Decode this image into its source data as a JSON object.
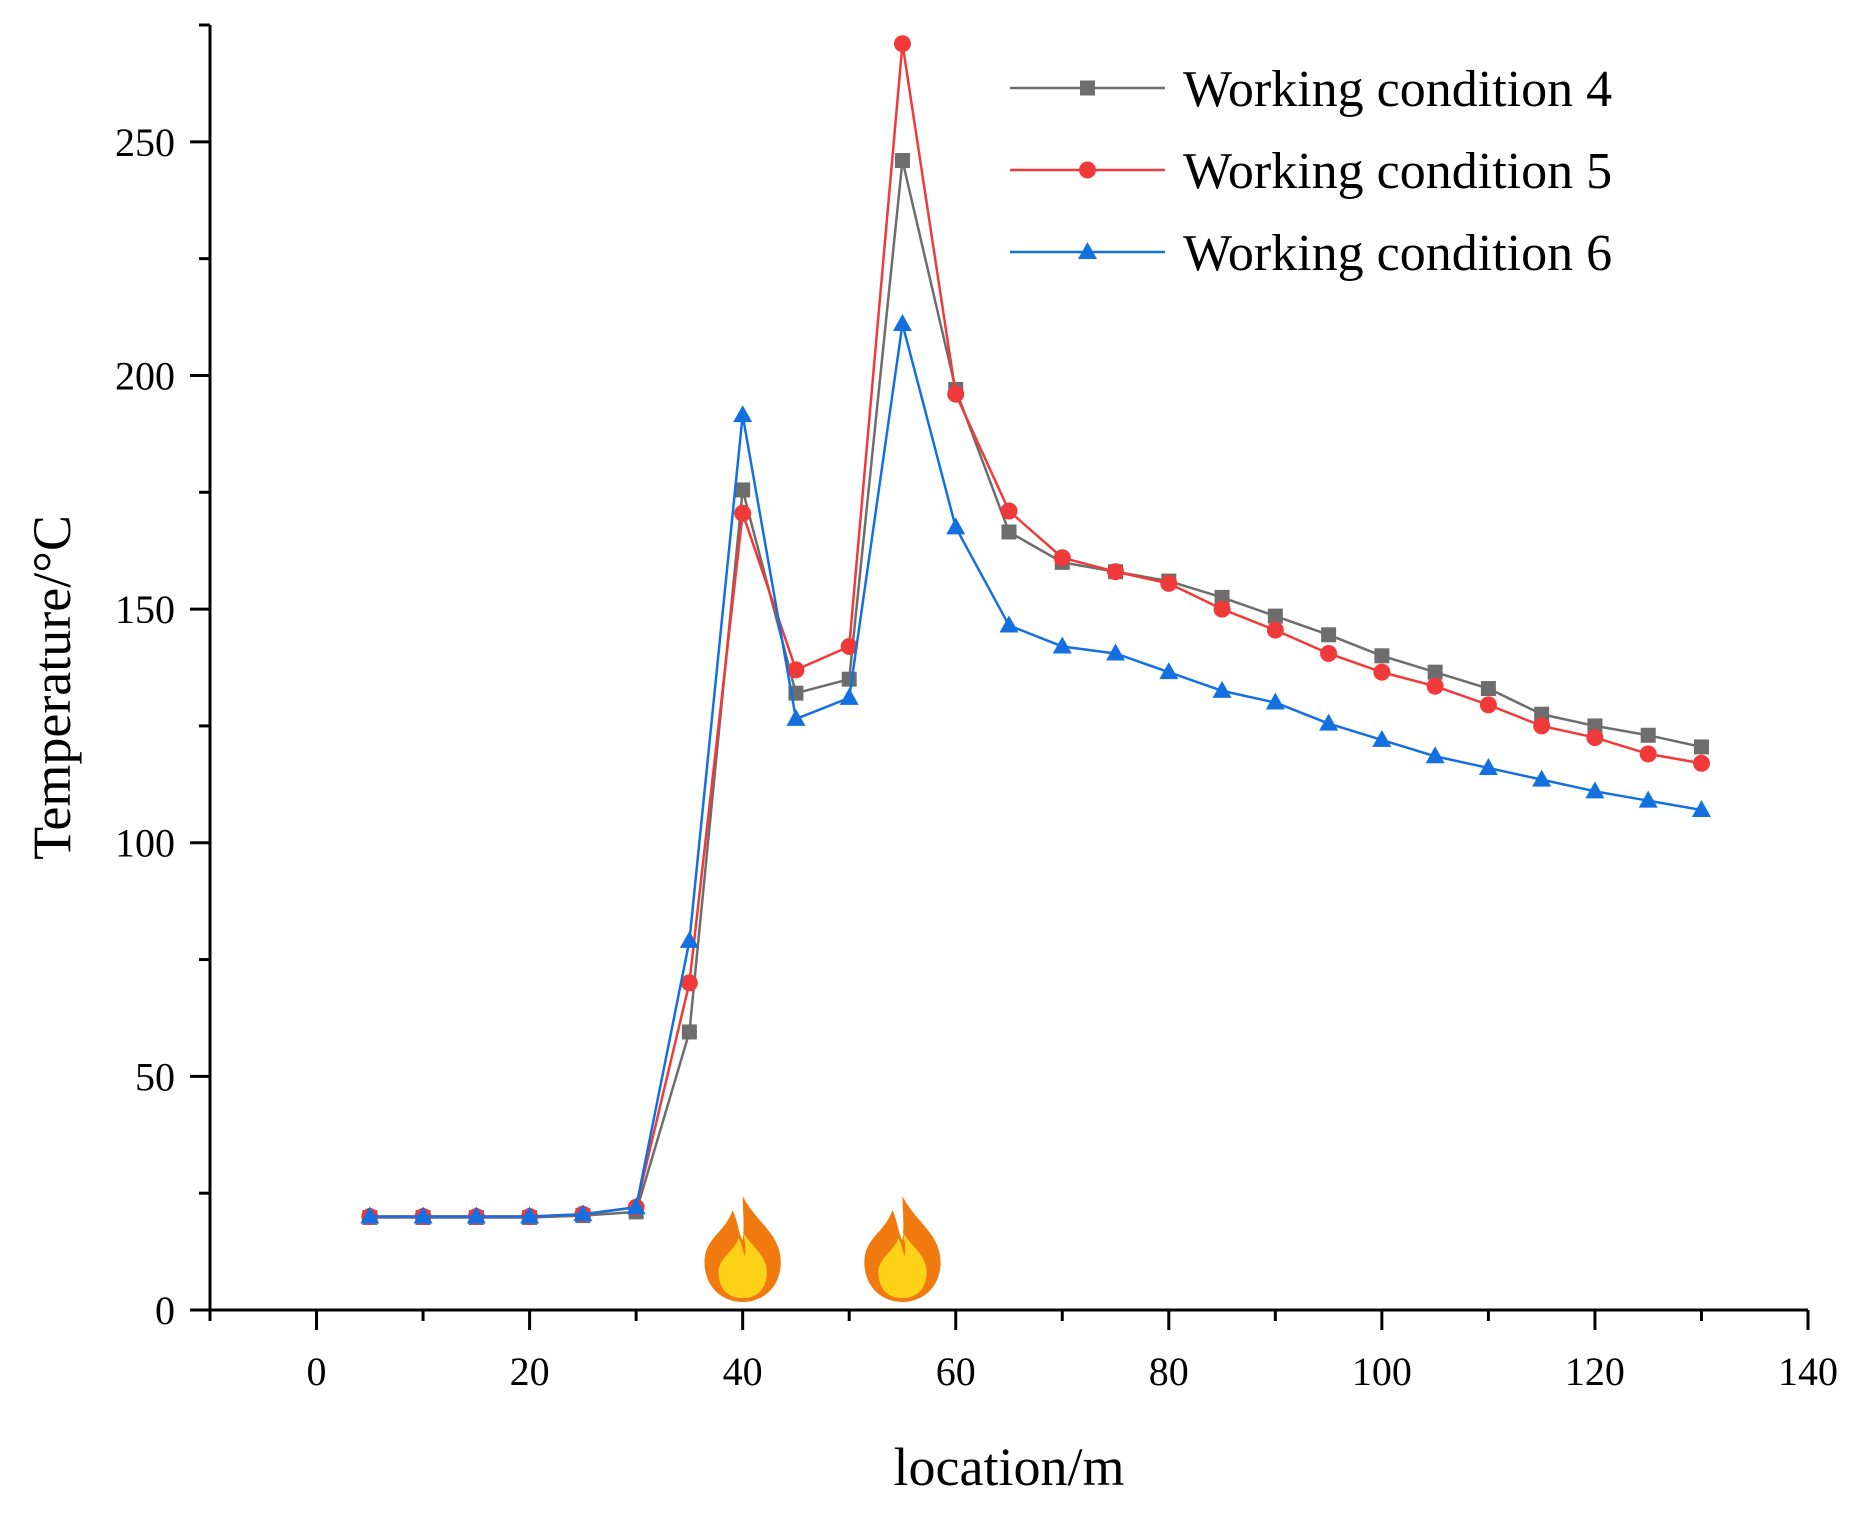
{
  "chart_data": {
    "type": "line",
    "xlabel": "location/m",
    "ylabel": "Temperature/°C",
    "xlim": [
      -10,
      140
    ],
    "ylim": [
      0,
      275
    ],
    "x_ticks": [
      0,
      20,
      40,
      60,
      80,
      100,
      120,
      140
    ],
    "y_ticks": [
      0,
      50,
      100,
      150,
      200,
      250
    ],
    "grid": false,
    "legend_position": "top-right",
    "x": [
      5,
      10,
      15,
      20,
      25,
      30,
      35,
      40,
      45,
      50,
      55,
      60,
      65,
      70,
      75,
      80,
      85,
      90,
      95,
      100,
      105,
      110,
      115,
      120,
      125,
      130
    ],
    "series": [
      {
        "name": "Working condition 4",
        "color": "#6d6d6d",
        "marker": "square",
        "values": [
          19.8,
          19.8,
          19.8,
          19.8,
          20.2,
          21,
          59.5,
          175.5,
          132,
          135,
          246,
          197,
          166.5,
          160,
          158,
          156,
          152.5,
          148.5,
          144.5,
          140,
          136.5,
          133,
          127.5,
          125,
          123,
          120.5
        ]
      },
      {
        "name": "Working condition 5",
        "color": "#f03a3a",
        "marker": "circle",
        "values": [
          20,
          20,
          20,
          20,
          20.5,
          22,
          70,
          170.5,
          137,
          142,
          271,
          196,
          171,
          161,
          158,
          155.5,
          150,
          145.5,
          140.5,
          136.5,
          133.5,
          129.5,
          125,
          122.5,
          119,
          117
        ]
      },
      {
        "name": "Working condition 6",
        "color": "#1470e0",
        "marker": "triangle",
        "values": [
          20,
          20,
          20,
          20,
          20.5,
          22,
          79,
          191.5,
          126.5,
          131,
          211,
          167.5,
          146.5,
          142,
          140.5,
          136.5,
          132.5,
          130,
          125.5,
          122,
          118.5,
          116,
          113.5,
          111,
          109,
          107
        ]
      }
    ],
    "fire_markers": [
      {
        "x": 40,
        "icon": "fire-icon"
      },
      {
        "x": 55,
        "icon": "fire-icon"
      }
    ],
    "colors": {
      "axis": "#000000",
      "fire_outer": "#f07a10",
      "fire_inner": "#ffd21a"
    }
  }
}
